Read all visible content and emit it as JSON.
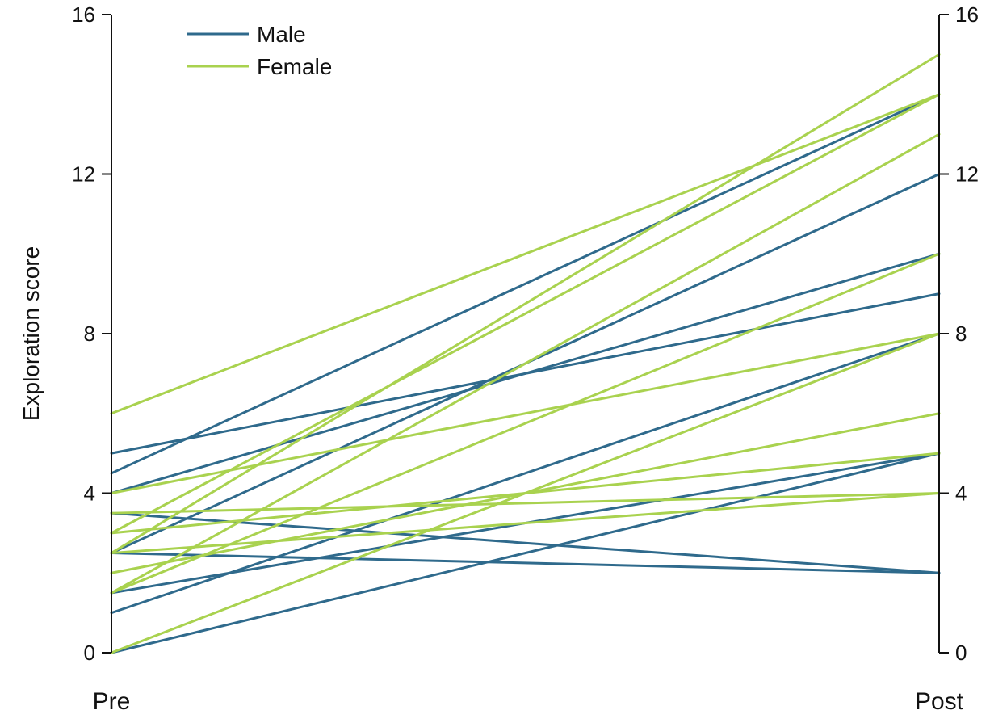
{
  "chart_data": {
    "type": "line",
    "categories": [
      "Pre",
      "Post"
    ],
    "ylabel": "Exploration score",
    "xlabel": "",
    "title": "",
    "ylim": [
      0,
      16
    ],
    "yticks": [
      0,
      4,
      8,
      12,
      16
    ],
    "y_axes": "left and right",
    "grid": false,
    "legend_position": "top-left",
    "groups": [
      {
        "name": "Male",
        "color": "#2f6a8c",
        "lines": [
          {
            "pre": 0.0,
            "post": 5.0
          },
          {
            "pre": 1.0,
            "post": 8.0
          },
          {
            "pre": 1.5,
            "post": 5.0
          },
          {
            "pre": 2.5,
            "post": 12.0
          },
          {
            "pre": 2.5,
            "post": 2.0
          },
          {
            "pre": 3.5,
            "post": 2.0
          },
          {
            "pre": 4.0,
            "post": 10.0
          },
          {
            "pre": 4.5,
            "post": 14.0
          },
          {
            "pre": 5.0,
            "post": 9.0
          }
        ]
      },
      {
        "name": "Female",
        "color": "#a9d24f",
        "lines": [
          {
            "pre": 0.0,
            "post": 8.0
          },
          {
            "pre": 1.5,
            "post": 13.0
          },
          {
            "pre": 1.5,
            "post": 10.0
          },
          {
            "pre": 2.0,
            "post": 6.0
          },
          {
            "pre": 2.5,
            "post": 4.0
          },
          {
            "pre": 2.5,
            "post": 15.0
          },
          {
            "pre": 3.0,
            "post": 14.0
          },
          {
            "pre": 3.0,
            "post": 5.0
          },
          {
            "pre": 3.5,
            "post": 4.0
          },
          {
            "pre": 4.0,
            "post": 8.0
          },
          {
            "pre": 6.0,
            "post": 14.0
          }
        ]
      }
    ]
  }
}
